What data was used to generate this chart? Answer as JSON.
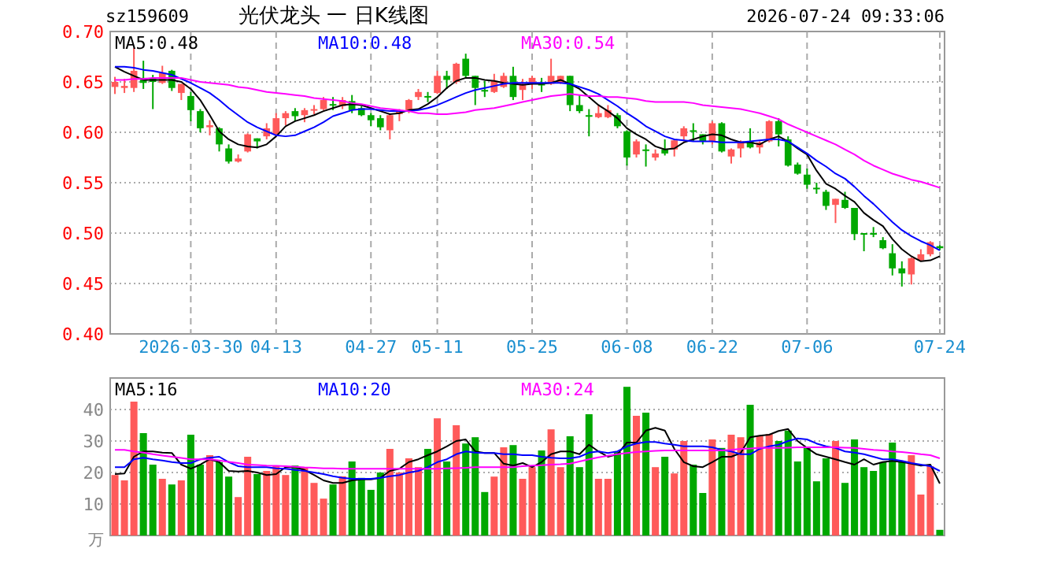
{
  "chart_data": [
    {
      "type": "candlestick",
      "title": "光伏龙头 一 日K线图",
      "subtitle": "sz159609",
      "annotations": [
        "2026-07-24 09:33:06"
      ],
      "categories": [
        null,
        null,
        null,
        null,
        null,
        null,
        null,
        null,
        "2026-03-30",
        null,
        null,
        null,
        null,
        null,
        null,
        null,
        null,
        "04-13",
        null,
        null,
        null,
        null,
        null,
        null,
        null,
        null,
        null,
        "04-27",
        null,
        null,
        null,
        null,
        null,
        null,
        "05-11",
        null,
        null,
        null,
        null,
        null,
        null,
        null,
        null,
        null,
        "05-25",
        null,
        null,
        null,
        null,
        null,
        null,
        null,
        null,
        null,
        "06-08",
        null,
        null,
        null,
        null,
        null,
        null,
        null,
        null,
        "06-22",
        null,
        null,
        null,
        null,
        null,
        null,
        null,
        null,
        null,
        "07-06",
        null,
        null,
        null,
        null,
        null,
        null,
        null,
        null,
        null,
        null,
        null,
        null,
        null,
        "07-24"
      ],
      "ohlc": [
        [
          0.645,
          0.655,
          0.638,
          0.65
        ],
        [
          0.644,
          0.653,
          0.639,
          0.646
        ],
        [
          0.644,
          0.684,
          0.64,
          0.661
        ],
        [
          0.654,
          0.671,
          0.643,
          0.649
        ],
        [
          0.653,
          0.657,
          0.623,
          0.65
        ],
        [
          0.649,
          0.666,
          0.648,
          0.659
        ],
        [
          0.661,
          0.662,
          0.641,
          0.644
        ],
        [
          0.639,
          0.648,
          0.632,
          0.648
        ],
        [
          0.636,
          0.64,
          0.611,
          0.622
        ],
        [
          0.621,
          0.623,
          0.6,
          0.604
        ],
        [
          0.605,
          0.612,
          0.597,
          0.607
        ],
        [
          0.604,
          0.605,
          0.581,
          0.588
        ],
        [
          0.584,
          0.588,
          0.569,
          0.571
        ],
        [
          0.571,
          0.578,
          0.57,
          0.574
        ],
        [
          0.581,
          0.599,
          0.58,
          0.598
        ],
        [
          0.594,
          0.594,
          0.584,
          0.591
        ],
        [
          0.596,
          0.609,
          0.593,
          0.604
        ],
        [
          0.598,
          0.619,
          0.596,
          0.614
        ],
        [
          0.614,
          0.621,
          0.607,
          0.619
        ],
        [
          0.621,
          0.624,
          0.611,
          0.616
        ],
        [
          0.617,
          0.624,
          0.61,
          0.622
        ],
        [
          0.622,
          0.627,
          0.618,
          0.623
        ],
        [
          0.623,
          0.635,
          0.622,
          0.632
        ],
        [
          0.628,
          0.635,
          0.622,
          0.627
        ],
        [
          0.626,
          0.635,
          0.623,
          0.632
        ],
        [
          0.631,
          0.637,
          0.619,
          0.622
        ],
        [
          0.624,
          0.626,
          0.616,
          0.617
        ],
        [
          0.617,
          0.619,
          0.606,
          0.612
        ],
        [
          0.614,
          0.617,
          0.602,
          0.605
        ],
        [
          0.602,
          0.618,
          0.593,
          0.617
        ],
        [
          0.618,
          0.623,
          0.611,
          0.622
        ],
        [
          0.622,
          0.633,
          0.619,
          0.632
        ],
        [
          0.635,
          0.643,
          0.632,
          0.64
        ],
        [
          0.636,
          0.64,
          0.63,
          0.635
        ],
        [
          0.639,
          0.661,
          0.638,
          0.656
        ],
        [
          0.656,
          0.661,
          0.643,
          0.652
        ],
        [
          0.65,
          0.669,
          0.648,
          0.668
        ],
        [
          0.673,
          0.678,
          0.654,
          0.656
        ],
        [
          0.656,
          0.656,
          0.627,
          0.644
        ],
        [
          0.642,
          0.651,
          0.635,
          0.641
        ],
        [
          0.64,
          0.658,
          0.639,
          0.651
        ],
        [
          0.645,
          0.659,
          0.644,
          0.656
        ],
        [
          0.656,
          0.665,
          0.632,
          0.635
        ],
        [
          0.642,
          0.653,
          0.632,
          0.648
        ],
        [
          0.649,
          0.656,
          0.643,
          0.654
        ],
        [
          0.648,
          0.654,
          0.64,
          0.647
        ],
        [
          0.648,
          0.673,
          0.647,
          0.656
        ],
        [
          0.649,
          0.656,
          0.648,
          0.656
        ],
        [
          0.656,
          0.656,
          0.621,
          0.627
        ],
        [
          0.627,
          0.637,
          0.619,
          0.621
        ],
        [
          0.617,
          0.623,
          0.596,
          0.616
        ],
        [
          0.615,
          0.627,
          0.614,
          0.619
        ],
        [
          0.615,
          0.627,
          0.614,
          0.622
        ],
        [
          0.617,
          0.619,
          0.604,
          0.606
        ],
        [
          0.601,
          0.602,
          0.567,
          0.575
        ],
        [
          0.578,
          0.593,
          0.575,
          0.591
        ],
        [
          0.583,
          0.588,
          0.566,
          0.582
        ],
        [
          0.575,
          0.583,
          0.572,
          0.579
        ],
        [
          0.583,
          0.593,
          0.577,
          0.579
        ],
        [
          0.583,
          0.593,
          0.576,
          0.592
        ],
        [
          0.596,
          0.606,
          0.591,
          0.604
        ],
        [
          0.602,
          0.609,
          0.591,
          0.601
        ],
        [
          0.598,
          0.598,
          0.588,
          0.591
        ],
        [
          0.591,
          0.611,
          0.588,
          0.609
        ],
        [
          0.609,
          0.61,
          0.58,
          0.581
        ],
        [
          0.576,
          0.584,
          0.569,
          0.583
        ],
        [
          0.584,
          0.592,
          0.575,
          0.591
        ],
        [
          0.591,
          0.604,
          0.584,
          0.585
        ],
        [
          0.585,
          0.591,
          0.579,
          0.59
        ],
        [
          0.591,
          0.612,
          0.59,
          0.611
        ],
        [
          0.611,
          0.614,
          0.586,
          0.598
        ],
        [
          0.593,
          0.596,
          0.566,
          0.567
        ],
        [
          0.568,
          0.57,
          0.558,
          0.559
        ],
        [
          0.558,
          0.564,
          0.544,
          0.548
        ],
        [
          0.545,
          0.55,
          0.539,
          0.544
        ],
        [
          0.541,
          0.543,
          0.523,
          0.527
        ],
        [
          0.528,
          0.534,
          0.51,
          0.534
        ],
        [
          0.533,
          0.541,
          0.524,
          0.525
        ],
        [
          0.525,
          0.525,
          0.493,
          0.499
        ],
        [
          0.5,
          0.5,
          0.482,
          0.499
        ],
        [
          0.5,
          0.506,
          0.496,
          0.499
        ],
        [
          0.493,
          0.496,
          0.484,
          0.485
        ],
        [
          0.48,
          0.489,
          0.458,
          0.465
        ],
        [
          0.465,
          0.472,
          0.447,
          0.46
        ],
        [
          0.459,
          0.476,
          0.449,
          0.475
        ],
        [
          0.473,
          0.484,
          0.472,
          0.479
        ],
        [
          0.479,
          0.492,
          0.477,
          0.491
        ],
        [
          0.487,
          0.488,
          0.483,
          0.485
        ]
      ],
      "series": [
        {
          "type": "line",
          "name": "MA5:0.48",
          "color": "#000000",
          "values": [
            0.665,
            0.66,
            0.656,
            0.652,
            0.652,
            0.652,
            0.652,
            0.65,
            0.643,
            0.632,
            0.617,
            0.601,
            0.593,
            0.588,
            0.586,
            0.585,
            0.588,
            0.596,
            0.606,
            0.611,
            0.614,
            0.617,
            0.621,
            0.624,
            0.627,
            0.628,
            0.627,
            0.624,
            0.621,
            0.618,
            0.619,
            0.622,
            0.623,
            0.628,
            0.635,
            0.644,
            0.651,
            0.654,
            0.654,
            0.652,
            0.651,
            0.649,
            0.648,
            0.647,
            0.648,
            0.648,
            0.649,
            0.652,
            0.648,
            0.643,
            0.635,
            0.627,
            0.621,
            0.614,
            0.604,
            0.598,
            0.593,
            0.586,
            0.583,
            0.584,
            0.59,
            0.593,
            0.596,
            0.598,
            0.597,
            0.593,
            0.59,
            0.59,
            0.588,
            0.593,
            0.596,
            0.591,
            0.584,
            0.578,
            0.562,
            0.549,
            0.544,
            0.537,
            0.531,
            0.52,
            0.513,
            0.507,
            0.494,
            0.484,
            0.477,
            0.472,
            0.473,
            0.477
          ]
        },
        {
          "type": "line",
          "name": "MA10:0.48",
          "color": "#0000ff",
          "values": [
            0.665,
            0.665,
            0.664,
            0.662,
            0.661,
            0.659,
            0.657,
            0.653,
            0.649,
            0.644,
            0.639,
            0.632,
            0.624,
            0.617,
            0.61,
            0.605,
            0.601,
            0.597,
            0.596,
            0.597,
            0.601,
            0.605,
            0.61,
            0.616,
            0.619,
            0.622,
            0.623,
            0.623,
            0.622,
            0.621,
            0.621,
            0.621,
            0.622,
            0.624,
            0.627,
            0.631,
            0.635,
            0.639,
            0.642,
            0.644,
            0.646,
            0.648,
            0.649,
            0.649,
            0.649,
            0.649,
            0.649,
            0.649,
            0.648,
            0.645,
            0.642,
            0.638,
            0.632,
            0.626,
            0.619,
            0.613,
            0.606,
            0.601,
            0.596,
            0.593,
            0.592,
            0.591,
            0.591,
            0.591,
            0.59,
            0.59,
            0.59,
            0.591,
            0.592,
            0.593,
            0.593,
            0.591,
            0.585,
            0.579,
            0.572,
            0.566,
            0.559,
            0.554,
            0.546,
            0.537,
            0.529,
            0.52,
            0.511,
            0.503,
            0.497,
            0.492,
            0.488,
            0.483
          ]
        },
        {
          "type": "line",
          "name": "MA30:0.54",
          "color": "#ff00ff",
          "values": [
            0.652,
            0.652,
            0.653,
            0.653,
            0.654,
            0.654,
            0.654,
            0.654,
            0.652,
            0.65,
            0.649,
            0.648,
            0.647,
            0.645,
            0.644,
            0.642,
            0.64,
            0.639,
            0.638,
            0.637,
            0.636,
            0.634,
            0.633,
            0.632,
            0.631,
            0.629,
            0.628,
            0.626,
            0.624,
            0.623,
            0.622,
            0.621,
            0.619,
            0.619,
            0.618,
            0.618,
            0.619,
            0.62,
            0.622,
            0.623,
            0.624,
            0.626,
            0.628,
            0.63,
            0.632,
            0.634,
            0.636,
            0.637,
            0.638,
            0.637,
            0.636,
            0.636,
            0.635,
            0.635,
            0.634,
            0.633,
            0.631,
            0.63,
            0.63,
            0.63,
            0.63,
            0.629,
            0.627,
            0.626,
            0.625,
            0.624,
            0.623,
            0.621,
            0.619,
            0.616,
            0.613,
            0.608,
            0.604,
            0.6,
            0.596,
            0.592,
            0.588,
            0.583,
            0.578,
            0.572,
            0.567,
            0.563,
            0.559,
            0.556,
            0.553,
            0.551,
            0.548,
            0.545
          ]
        }
      ],
      "ylim": [
        0.4,
        0.7
      ],
      "yticks": [
        {
          "value": 0.4,
          "label": "0.40"
        },
        0.45,
        {
          "value": 0.5,
          "label": "0.50"
        },
        0.55,
        {
          "value": 0.6,
          "label": "0.60"
        },
        0.65,
        {
          "value": 0.7,
          "label": "0.70"
        }
      ],
      "grid": true,
      "legend": "top"
    },
    {
      "type": "bar",
      "ylabel": "万",
      "tick_labels": "y",
      "categories": [
        null,
        null,
        null,
        null,
        null,
        null,
        null,
        null,
        null,
        null,
        null,
        null,
        null,
        null,
        null,
        null,
        null,
        null,
        null,
        null,
        null,
        null,
        null,
        null,
        null,
        null,
        null,
        null,
        null,
        null,
        null,
        null,
        null,
        null,
        null,
        null,
        null,
        null,
        null,
        null,
        null,
        null,
        null,
        null,
        null,
        null,
        null,
        null,
        null,
        null,
        null,
        null,
        null,
        null,
        null,
        null,
        null,
        null,
        null,
        null,
        null,
        null,
        null,
        null,
        null,
        null,
        null,
        null,
        null,
        null,
        null,
        null,
        null,
        null,
        null,
        null,
        null,
        null,
        null,
        null,
        null,
        null,
        null,
        null,
        null,
        null,
        null,
        null
      ],
      "series": [
        {
          "type": "bar",
          "values": [
            19.2,
            17.5,
            42.5,
            32.5,
            22.5,
            18,
            16.2,
            17.5,
            32,
            22.5,
            25.5,
            23.3,
            18.7,
            12.2,
            25,
            19.5,
            20.5,
            22.2,
            19.2,
            22.2,
            21.7,
            16.7,
            11.7,
            16.2,
            18.8,
            23.5,
            18.3,
            14.5,
            20,
            27.5,
            20,
            24.5,
            21.7,
            27.5,
            37.2,
            23.5,
            35,
            29.2,
            31.2,
            13.8,
            18.7,
            28,
            28.7,
            18,
            21.7,
            27,
            33.7,
            21.7,
            31.5,
            21.7,
            38.5,
            18,
            18,
            26.5,
            47.2,
            38,
            39,
            21.7,
            25,
            19.7,
            30,
            22.5,
            13.5,
            30.5,
            27.8,
            32,
            31.2,
            41.5,
            31.7,
            32.2,
            30,
            33.3,
            23.5,
            27.8,
            17.2,
            24.5,
            30,
            16.7,
            30.5,
            21.7,
            20.5,
            23.3,
            29.5,
            23.3,
            25.5,
            13,
            22,
            1.8
          ],
          "colors": [
            "#ff5a5a",
            "#ff5a5a",
            "#ff5a5a",
            "#00a800",
            "#00a800",
            "#ff5a5a",
            "#00a800",
            "#ff5a5a",
            "#00a800",
            "#00a800",
            "#ff5a5a",
            "#00a800",
            "#00a800",
            "#ff5a5a",
            "#ff5a5a",
            "#00a800",
            "#ff5a5a",
            "#ff5a5a",
            "#ff5a5a",
            "#00a800",
            "#ff5a5a",
            "#ff5a5a",
            "#ff5a5a",
            "#00a800",
            "#ff5a5a",
            "#00a800",
            "#00a800",
            "#00a800",
            "#00a800",
            "#ff5a5a",
            "#ff5a5a",
            "#ff5a5a",
            "#ff5a5a",
            "#00a800",
            "#ff5a5a",
            "#00a800",
            "#ff5a5a",
            "#00a800",
            "#00a800",
            "#00a800",
            "#ff5a5a",
            "#ff5a5a",
            "#00a800",
            "#ff5a5a",
            "#ff5a5a",
            "#00a800",
            "#ff5a5a",
            "#ff5a5a",
            "#00a800",
            "#00a800",
            "#00a800",
            "#ff5a5a",
            "#ff5a5a",
            "#00a800",
            "#00a800",
            "#ff5a5a",
            "#00a800",
            "#ff5a5a",
            "#00a800",
            "#ff5a5a",
            "#ff5a5a",
            "#00a800",
            "#00a800",
            "#ff5a5a",
            "#00a800",
            "#ff5a5a",
            "#ff5a5a",
            "#00a800",
            "#ff5a5a",
            "#ff5a5a",
            "#00a800",
            "#00a800",
            "#00a800",
            "#00a800",
            "#00a800",
            "#00a800",
            "#ff5a5a",
            "#00a800",
            "#00a800",
            "#00a800",
            "#00a800",
            "#00a800",
            "#00a800",
            "#00a800",
            "#ff5a5a",
            "#ff5a5a",
            "#ff5a5a",
            "#00a800"
          ]
        },
        {
          "type": "line",
          "name": "MA5:16",
          "color": "#000000",
          "values": [
            19.5,
            19.7,
            25,
            26.7,
            26.7,
            26.3,
            26.2,
            22.5,
            21.2,
            22.5,
            24.2,
            23.3,
            20.5,
            20.3,
            20.5,
            20,
            19.2,
            19.5,
            21.7,
            21.7,
            20.8,
            19.2,
            17.5,
            16.7,
            16.7,
            17.5,
            17.8,
            17.8,
            18.3,
            20.5,
            21.2,
            23.3,
            24.2,
            25.5,
            26.7,
            28.3,
            30,
            30.5,
            26.7,
            26.2,
            26.2,
            22.8,
            22.2,
            23,
            21.7,
            23.3,
            25.8,
            26.7,
            26.7,
            25.8,
            28.8,
            26.7,
            25,
            25.8,
            29.5,
            29.5,
            33.3,
            34.2,
            33.3,
            27.5,
            23.3,
            22,
            21.7,
            23.3,
            25,
            25,
            26.2,
            31.2,
            31.7,
            32,
            33.2,
            33.8,
            30,
            27.8,
            25.8,
            25,
            24.2,
            23.3,
            22.5,
            24.2,
            22.5,
            23.3,
            23.7,
            23.3,
            22.8,
            22.2,
            22.5,
            16.5
          ]
        },
        {
          "type": "line",
          "name": "MA10:20",
          "color": "#0000ff",
          "values": [
            21.7,
            21.7,
            24.2,
            24.7,
            24.2,
            23.8,
            23.3,
            23,
            23,
            24.2,
            24.7,
            25,
            23.3,
            22,
            21.7,
            21.7,
            21.7,
            21.3,
            21.2,
            20.8,
            20.5,
            20,
            19.5,
            18.8,
            18.3,
            18,
            18,
            18,
            18.3,
            18.8,
            19.2,
            20,
            20.5,
            21.7,
            23.3,
            24.2,
            25.8,
            26.7,
            26.3,
            26.2,
            26.2,
            25.8,
            25.8,
            25.5,
            25.5,
            25,
            24.7,
            24.5,
            24.5,
            25,
            26.3,
            26.7,
            26.2,
            26.7,
            28.3,
            29.2,
            29.7,
            29.7,
            29.2,
            28.8,
            28.3,
            28.3,
            28.3,
            28,
            27.2,
            26.7,
            25.8,
            25.8,
            27.5,
            28.3,
            28.8,
            30,
            30.8,
            30.5,
            29.2,
            28.3,
            27.8,
            26.7,
            26.3,
            25.8,
            25,
            24.2,
            24.2,
            23.7,
            23,
            22.5,
            22,
            20.5
          ]
        },
        {
          "type": "line",
          "name": "MA30:24",
          "color": "#ff00ff",
          "values": [
            27.2,
            27.2,
            26.7,
            26.3,
            25.8,
            25.4,
            25,
            24.6,
            24.2,
            24.2,
            24.2,
            23.8,
            23.4,
            23,
            22.5,
            22.4,
            22.2,
            22.1,
            22,
            21.8,
            21.6,
            21.5,
            21.3,
            21.3,
            21.2,
            21.2,
            21.2,
            21.2,
            21.2,
            21.2,
            21.2,
            21.2,
            21.2,
            21.2,
            21.2,
            21.3,
            21.4,
            21.5,
            21.7,
            21.7,
            21.7,
            21.7,
            21.7,
            22,
            22.2,
            22.3,
            22.5,
            22.6,
            22.8,
            23.5,
            24.2,
            24.8,
            25.3,
            25.8,
            26.2,
            26.5,
            26.7,
            26.9,
            27,
            27,
            27,
            27,
            27,
            27,
            27,
            27.2,
            27.5,
            27.6,
            27.8,
            27.8,
            27.8,
            27.9,
            28,
            28,
            28,
            28,
            28,
            27.9,
            27.8,
            27.5,
            27.2,
            27,
            26.7,
            26.5,
            26.2,
            25.8,
            25.5,
            24.5
          ]
        }
      ],
      "ylim": [
        0,
        50
      ],
      "yticks": [
        10,
        20,
        30,
        40
      ],
      "grid": true,
      "legend": "top"
    }
  ]
}
